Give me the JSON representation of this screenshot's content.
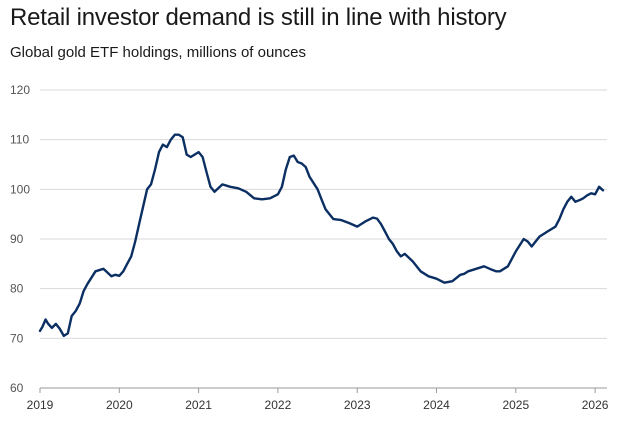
{
  "title": "Retail investor demand is still in line with history",
  "subtitle": "Global gold ETF holdings, millions of ounces",
  "source": "",
  "colors": {
    "line": "#0b2f63",
    "grid": "#d9d9d9",
    "axis": "#9a9a9a"
  },
  "chart_data": {
    "type": "line",
    "title": "Retail investor demand is still in line with history",
    "subtitle": "Global gold ETF holdings, millions of ounces",
    "xlabel": "",
    "ylabel": "",
    "xlim": [
      2019.0,
      2026.15
    ],
    "ylim": [
      60,
      120
    ],
    "yticks": [
      60,
      70,
      80,
      90,
      100,
      110,
      120
    ],
    "xticks": [
      {
        "v": 2019,
        "label": "2019"
      },
      {
        "v": 2020,
        "label": "2020"
      },
      {
        "v": 2021,
        "label": "2021"
      },
      {
        "v": 2022,
        "label": "2022"
      },
      {
        "v": 2023,
        "label": "2023"
      },
      {
        "v": 2024,
        "label": "2024"
      },
      {
        "v": 2025,
        "label": "2025"
      },
      {
        "v": 2026,
        "label": "2026"
      }
    ],
    "grid": true,
    "series": [
      {
        "x": [
          2019.0,
          2019.03,
          2019.07,
          2019.1,
          2019.15,
          2019.2,
          2019.25,
          2019.3,
          2019.35,
          2019.4,
          2019.45,
          2019.5,
          2019.55,
          2019.6,
          2019.7,
          2019.8,
          2019.9,
          2019.95,
          2020.0,
          2020.05,
          2020.1,
          2020.15,
          2020.2,
          2020.25,
          2020.3,
          2020.35,
          2020.4,
          2020.45,
          2020.5,
          2020.55,
          2020.6,
          2020.65,
          2020.7,
          2020.75,
          2020.8,
          2020.85,
          2020.9,
          2020.95,
          2021.0,
          2021.05,
          2021.1,
          2021.15,
          2021.2,
          2021.3,
          2021.4,
          2021.5,
          2021.6,
          2021.7,
          2021.8,
          2021.9,
          2022.0,
          2022.05,
          2022.1,
          2022.15,
          2022.2,
          2022.25,
          2022.3,
          2022.35,
          2022.4,
          2022.5,
          2022.55,
          2022.6,
          2022.7,
          2022.8,
          2022.9,
          2023.0,
          2023.1,
          2023.2,
          2023.25,
          2023.3,
          2023.35,
          2023.4,
          2023.45,
          2023.5,
          2023.55,
          2023.6,
          2023.7,
          2023.8,
          2023.9,
          2024.0,
          2024.1,
          2024.2,
          2024.3,
          2024.35,
          2024.4,
          2024.5,
          2024.6,
          2024.7,
          2024.75,
          2024.8,
          2024.85,
          2024.9,
          2025.0,
          2025.1,
          2025.15,
          2025.2,
          2025.25,
          2025.3,
          2025.35,
          2025.4,
          2025.5,
          2025.55,
          2025.6,
          2025.65,
          2025.7,
          2025.75,
          2025.8,
          2025.85,
          2025.9,
          2025.95,
          2026.0,
          2026.05,
          2026.1
        ],
        "values": [
          71.5,
          72.3,
          73.8,
          73.0,
          72.1,
          72.9,
          71.9,
          70.5,
          71.0,
          74.5,
          75.5,
          77.0,
          79.5,
          81.0,
          83.5,
          84.0,
          82.5,
          82.8,
          82.6,
          83.5,
          85.0,
          86.5,
          89.5,
          93.0,
          96.5,
          100.0,
          101.0,
          104.0,
          107.5,
          109.0,
          108.5,
          110.0,
          111.0,
          111.0,
          110.5,
          107.0,
          106.5,
          107.0,
          107.5,
          106.5,
          103.5,
          100.5,
          99.5,
          101.0,
          100.5,
          100.2,
          99.5,
          98.2,
          98.0,
          98.2,
          99.0,
          100.5,
          104.0,
          106.5,
          106.8,
          105.5,
          105.2,
          104.5,
          102.5,
          100.0,
          98.0,
          96.0,
          94.0,
          93.8,
          93.2,
          92.5,
          93.5,
          94.3,
          94.1,
          93.0,
          91.5,
          90.0,
          89.0,
          87.5,
          86.5,
          87.0,
          85.5,
          83.5,
          82.5,
          82.0,
          81.2,
          81.5,
          82.8,
          83.0,
          83.5,
          84.0,
          84.5,
          83.8,
          83.5,
          83.5,
          84.0,
          84.5,
          87.5,
          90.0,
          89.5,
          88.5,
          89.5,
          90.5,
          91.0,
          91.5,
          92.5,
          94.0,
          96.0,
          97.5,
          98.5,
          97.5,
          97.8,
          98.2,
          98.8,
          99.2,
          99.0,
          100.5,
          99.8
        ]
      }
    ]
  }
}
